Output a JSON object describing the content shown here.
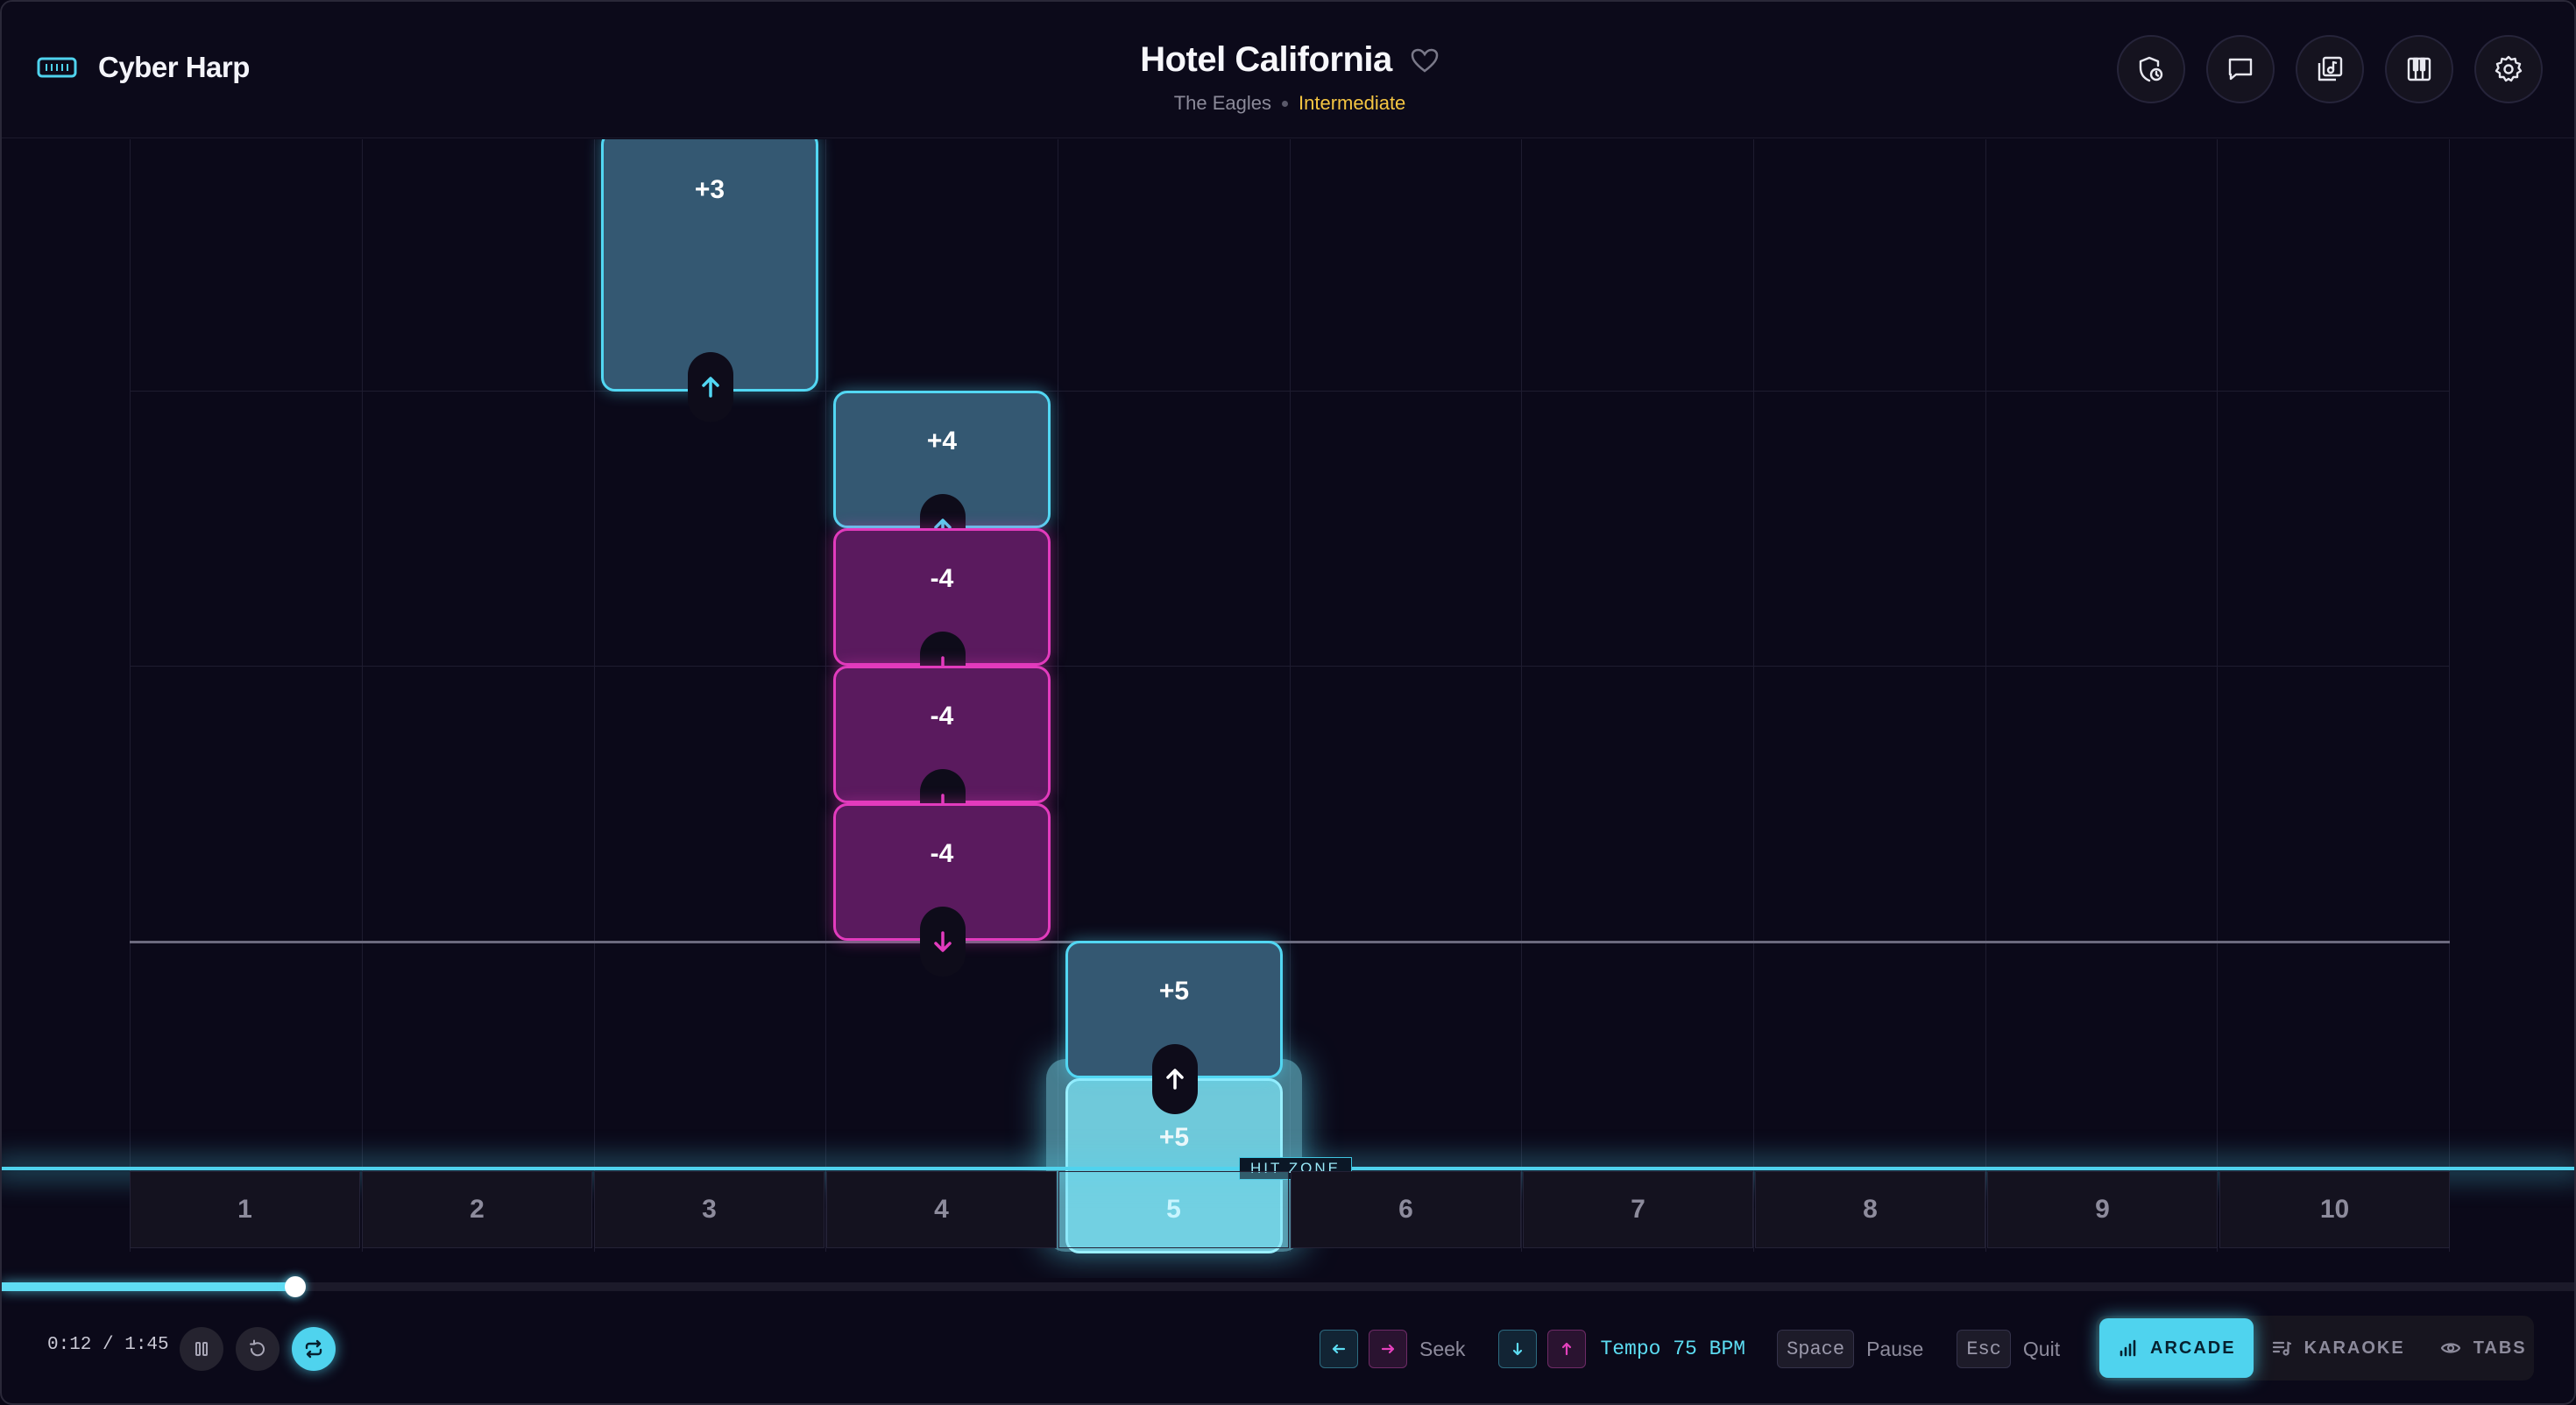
{
  "app": {
    "name": "Cyber Harp"
  },
  "song": {
    "title": "Hotel California",
    "artist": "The Eagles",
    "difficulty": "Intermediate"
  },
  "header_buttons": [
    "shield-clock-icon",
    "chat-icon",
    "music-library-icon",
    "piano-keys-icon",
    "settings-icon"
  ],
  "notes": [
    {
      "label": "+3",
      "type": "blow",
      "hole": 3
    },
    {
      "label": "+4",
      "type": "blow",
      "hole": 4
    },
    {
      "label": "-4",
      "type": "draw",
      "hole": 4
    },
    {
      "label": "-4",
      "type": "draw",
      "hole": 4
    },
    {
      "label": "-4",
      "type": "draw",
      "hole": 4
    },
    {
      "label": "+5",
      "type": "blow",
      "hole": 5
    },
    {
      "label": "+5",
      "type": "blow",
      "hole": 5
    }
  ],
  "hit_zone_label": "HIT ZONE",
  "holes": [
    "1",
    "2",
    "3",
    "4",
    "5",
    "6",
    "7",
    "8",
    "9",
    "10"
  ],
  "active_hole": "5",
  "playback": {
    "time": "0:12 / 1:45",
    "progress": 0.114
  },
  "hints": {
    "seek_label": "Seek",
    "tempo_label": "Tempo 75 BPM",
    "space_key": "Space",
    "pause_label": "Pause",
    "esc_key": "Esc",
    "quit_label": "Quit"
  },
  "modes": [
    {
      "label": "ARCADE",
      "active": true
    },
    {
      "label": "KARAOKE",
      "active": false
    },
    {
      "label": "TABS",
      "active": false
    }
  ],
  "colors": {
    "blow": "#52d7f3",
    "draw": "#e23bbd",
    "difficulty": "#f5c542",
    "accent": "#4fd3ee"
  }
}
